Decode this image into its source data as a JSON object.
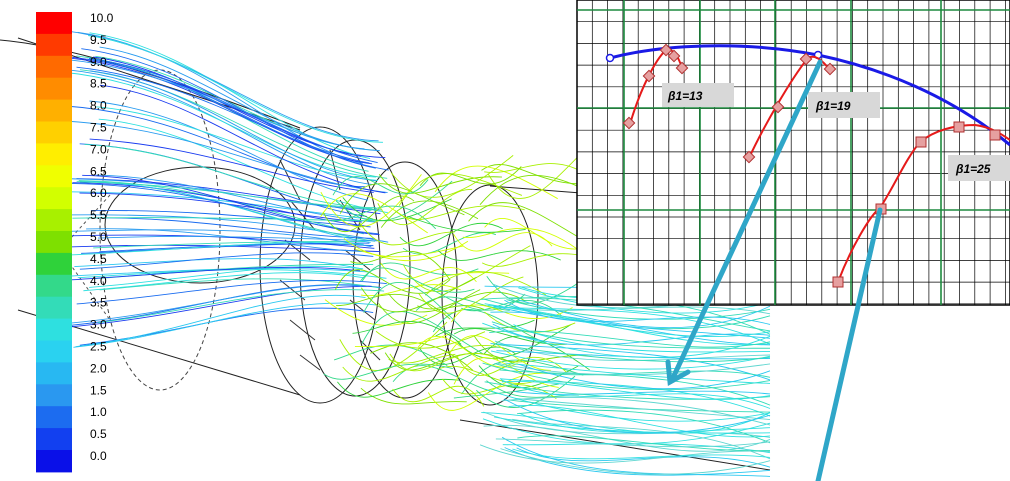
{
  "colorbar": {
    "labels": [
      "10.0",
      "9.5",
      "9.0",
      "8.5",
      "8.0",
      "7.5",
      "7.0",
      "6.5",
      "6.0",
      "5.5",
      "5.0",
      "4.5",
      "4.0",
      "3.5",
      "3.0",
      "2.5",
      "2.0",
      "1.5",
      "1.0",
      "0.5",
      "0.0"
    ],
    "colors": [
      "#ff0000",
      "#ff3a00",
      "#ff6a00",
      "#ff8c00",
      "#ffb000",
      "#ffd000",
      "#ffee00",
      "#f0ff00",
      "#d2ff00",
      "#a8f000",
      "#7ee000",
      "#2fd23a",
      "#33d98a",
      "#33dcb8",
      "#2ee0e0",
      "#2ad2f0",
      "#28b8f2",
      "#2a98f0",
      "#1c6cf0",
      "#1240f0",
      "#0a10e8"
    ]
  },
  "inset_plot": {
    "envelope_color": "#1a1ae6",
    "curve_color": "#e61a1a",
    "grid_major_color": "#1d8a3e",
    "grid_minor_color": "#000000",
    "labels": [
      "β1=13",
      "β1=19",
      "β1=25"
    ]
  },
  "callout_arrow_color": "#2fa6c8"
}
